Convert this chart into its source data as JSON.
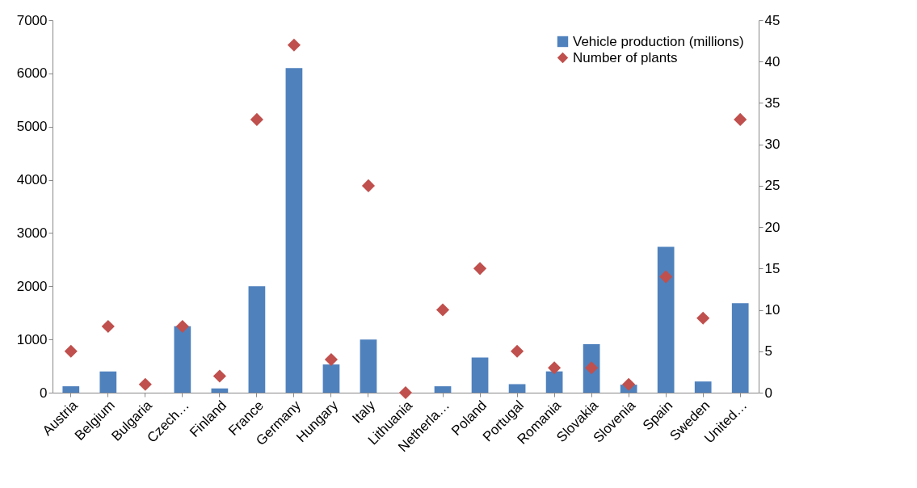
{
  "chart_data": {
    "type": "bar",
    "categories": [
      "Austria",
      "Belgium",
      "Bulgaria",
      "Czech…",
      "Finland",
      "France",
      "Germany",
      "Hungary",
      "Italy",
      "Lithuania",
      "Netherla…",
      "Poland",
      "Portugal",
      "Romania",
      "Slovakia",
      "Slovenia",
      "Spain",
      "Sweden",
      "United…"
    ],
    "series": [
      {
        "name": "Vehicle production (millions)",
        "color": "#4f81bd",
        "values": [
          120,
          400,
          null,
          1250,
          80,
          2000,
          6100,
          530,
          1000,
          null,
          120,
          660,
          160,
          400,
          910,
          150,
          2740,
          210,
          1680
        ]
      },
      {
        "name": "Number of plants",
        "type": "scatter",
        "axis": "y2",
        "color": "#c0504d",
        "values": [
          5,
          8,
          1,
          8,
          2,
          33,
          42,
          4,
          25,
          0,
          10,
          15,
          5,
          3,
          3,
          1,
          14,
          9,
          33
        ]
      }
    ],
    "ylim": [
      0,
      7000
    ],
    "yticks": [
      0,
      1000,
      2000,
      3000,
      4000,
      5000,
      6000,
      7000
    ],
    "y2lim": [
      0,
      45
    ],
    "y2ticks": [
      0,
      5,
      10,
      15,
      20,
      25,
      30,
      35,
      40,
      45
    ],
    "marker": "diamond",
    "legend": "top right"
  }
}
